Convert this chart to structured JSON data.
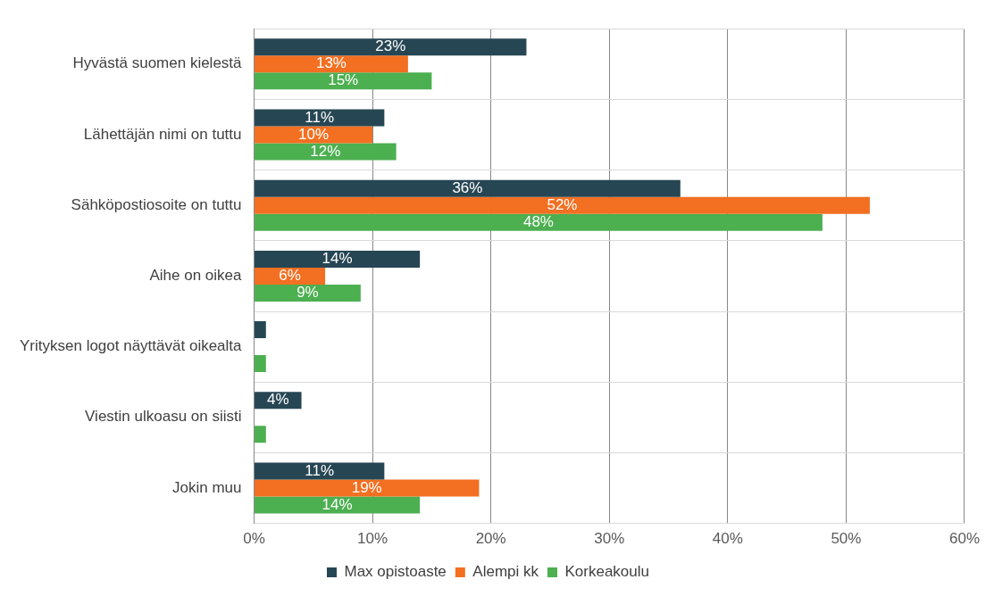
{
  "chart_data": {
    "type": "bar",
    "orientation": "horizontal",
    "categories": [
      "Hyvästä suomen kielestä",
      "Lähettäjän nimi on tuttu",
      "Sähköpostiosoite on tuttu",
      "Aihe on oikea",
      "Yrityksen logot näyttävät oikealta",
      "Viestin ulkoasu on siisti",
      "Jokin muu"
    ],
    "series": [
      {
        "name": "Max opistoaste",
        "color": "#264653",
        "values": [
          23,
          11,
          36,
          14,
          1,
          4,
          11
        ],
        "value_labels": [
          "23%",
          "11%",
          "36%",
          "14%",
          null,
          "4%",
          "11%"
        ]
      },
      {
        "name": "Alempi kk",
        "color": "#f36f21",
        "values": [
          13,
          10,
          52,
          6,
          0,
          0,
          19
        ],
        "value_labels": [
          "13%",
          "10%",
          "52%",
          "6%",
          null,
          null,
          "19%"
        ]
      },
      {
        "name": "Korkeakoulu",
        "color": "#4caf50",
        "values": [
          15,
          12,
          48,
          9,
          1,
          1,
          14
        ],
        "value_labels": [
          "15%",
          "12%",
          "48%",
          "9%",
          null,
          null,
          "14%"
        ]
      }
    ],
    "xlim": [
      0,
      60
    ],
    "xticks": [
      {
        "value": 0,
        "label": "0%"
      },
      {
        "value": 10,
        "label": "10%"
      },
      {
        "value": 20,
        "label": "20%"
      },
      {
        "value": 30,
        "label": "30%"
      },
      {
        "value": 40,
        "label": "40%"
      },
      {
        "value": 50,
        "label": "50%"
      },
      {
        "value": 60,
        "label": "60%"
      }
    ],
    "grid": true,
    "legend": "bottom"
  }
}
